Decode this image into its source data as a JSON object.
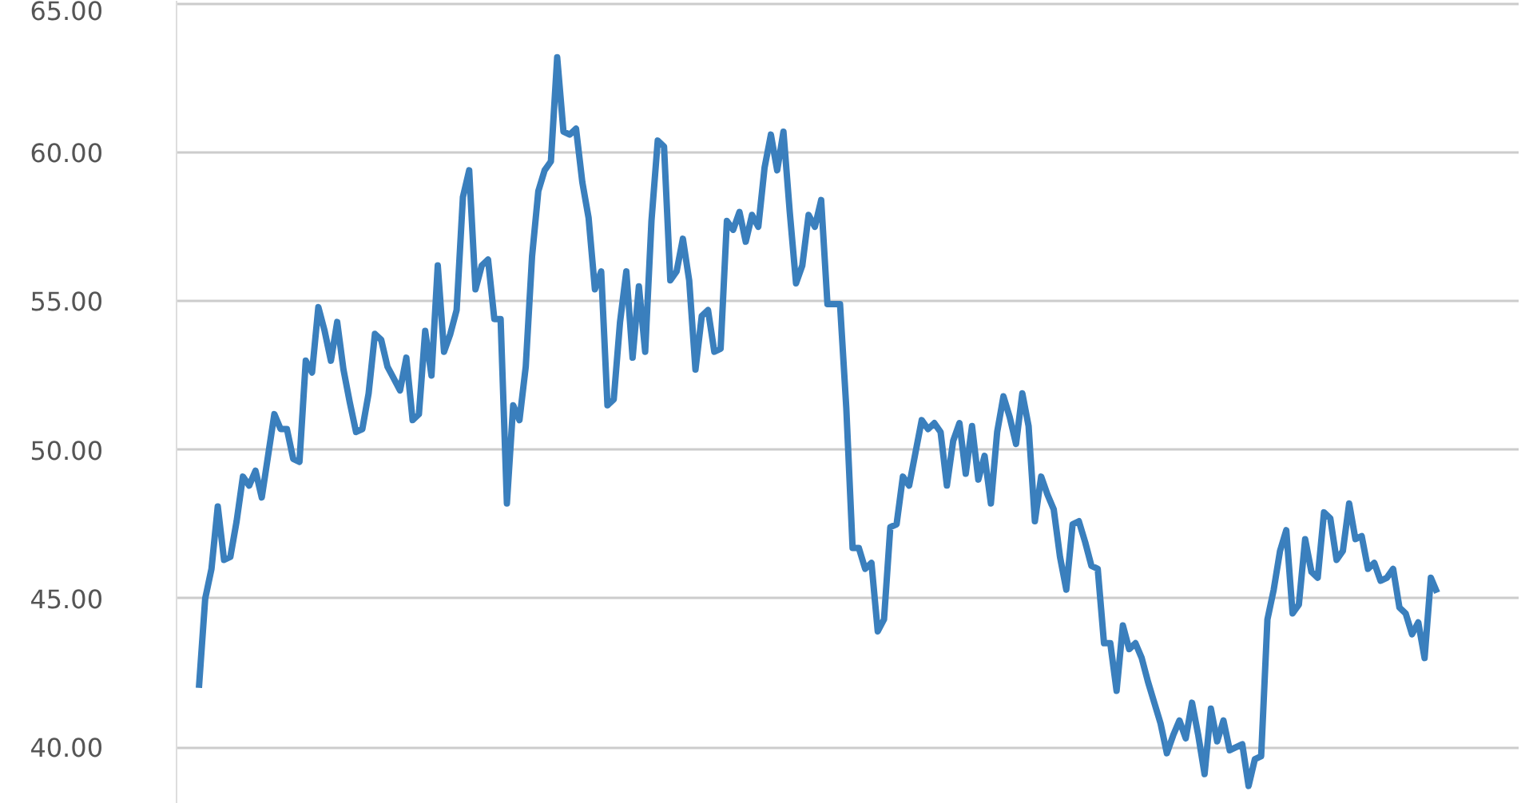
{
  "chart_data": {
    "type": "line",
    "color": "#3a7fbd",
    "grid": "y",
    "tick_labels": "y",
    "ylim": [
      38.1,
      65.1
    ],
    "yticks": [
      {
        "value": 40,
        "label": "40.00"
      },
      {
        "value": 45,
        "label": "45.00"
      },
      {
        "value": 50,
        "label": "50.00"
      },
      {
        "value": 55,
        "label": "55.00"
      },
      {
        "value": 60,
        "label": "60.00"
      },
      {
        "value": 65,
        "label": "65.00"
      }
    ],
    "categories": [
      null,
      null,
      null,
      null,
      null,
      null,
      null,
      null,
      null,
      null,
      null,
      null,
      null,
      null,
      null,
      null,
      null,
      null,
      null,
      null,
      null,
      null,
      null,
      null,
      null,
      null,
      null,
      null,
      null,
      null,
      null,
      null,
      null,
      null,
      null,
      null,
      null,
      null,
      null,
      null,
      null,
      null,
      null,
      null,
      null,
      null,
      null,
      null,
      null,
      null,
      null,
      null,
      null,
      null,
      null,
      null,
      null,
      null,
      null,
      null,
      null,
      null,
      null,
      null,
      null,
      null,
      null,
      null,
      null,
      null,
      null,
      null,
      null,
      null,
      null,
      null,
      null,
      null,
      null,
      null,
      null,
      null,
      null,
      null,
      null,
      null,
      null,
      null,
      null,
      null,
      null,
      null,
      null,
      null,
      null,
      null,
      null,
      null,
      null,
      null,
      null,
      null,
      null,
      null,
      null,
      null,
      null,
      null,
      null,
      null,
      null,
      null,
      null,
      null,
      null,
      null,
      null,
      null,
      null,
      null,
      null,
      null,
      null,
      null,
      null,
      null,
      null,
      null,
      null,
      null,
      null,
      null,
      null,
      null,
      null,
      null,
      null,
      null,
      null,
      null,
      null,
      null,
      null,
      null,
      null,
      null,
      null,
      null,
      null,
      null,
      null,
      null,
      null,
      null,
      null,
      null,
      null,
      null,
      null,
      null,
      null,
      null,
      null,
      null,
      null,
      null,
      null,
      null,
      null,
      null,
      null,
      null,
      null,
      null,
      null,
      null,
      null,
      null,
      null,
      null,
      null,
      null,
      null,
      null,
      null,
      null,
      null,
      null,
      null,
      null,
      null,
      null,
      null,
      null,
      null,
      null,
      null,
      null
    ],
    "values": [
      42.0,
      45.0,
      46.0,
      48.1,
      46.3,
      46.4,
      47.6,
      49.1,
      48.8,
      49.3,
      48.4,
      49.8,
      51.2,
      50.7,
      50.7,
      49.7,
      49.6,
      53.0,
      52.6,
      54.8,
      54.0,
      53.0,
      54.3,
      52.7,
      51.6,
      50.6,
      50.7,
      51.9,
      53.9,
      53.7,
      52.8,
      52.4,
      52.0,
      53.1,
      51.0,
      51.2,
      54.0,
      52.5,
      56.2,
      53.3,
      53.9,
      54.7,
      58.5,
      59.4,
      55.4,
      56.2,
      56.4,
      54.4,
      54.4,
      48.2,
      51.5,
      51.0,
      52.8,
      56.5,
      58.7,
      59.4,
      59.7,
      63.2,
      60.7,
      60.6,
      60.8,
      59.0,
      57.8,
      55.4,
      56.0,
      51.5,
      51.7,
      54.3,
      56.0,
      53.1,
      55.5,
      53.3,
      57.7,
      60.4,
      60.2,
      55.7,
      56.0,
      57.1,
      55.7,
      52.7,
      54.5,
      54.7,
      53.3,
      53.4,
      57.7,
      57.4,
      58.0,
      57.0,
      57.9,
      57.5,
      59.5,
      60.6,
      59.4,
      60.7,
      58.0,
      55.6,
      56.2,
      57.9,
      57.5,
      58.4,
      54.9,
      54.9,
      54.9,
      51.4,
      46.7,
      46.7,
      46.0,
      46.2,
      43.9,
      44.3,
      47.4,
      47.5,
      49.1,
      48.8,
      49.9,
      51.0,
      50.7,
      50.9,
      50.6,
      48.8,
      50.3,
      50.9,
      49.2,
      50.8,
      49.0,
      49.8,
      48.2,
      50.6,
      51.8,
      51.1,
      50.2,
      51.9,
      50.8,
      47.6,
      49.1,
      48.5,
      48.0,
      46.4,
      45.3,
      47.5,
      47.6,
      46.9,
      46.1,
      46.0,
      43.5,
      43.5,
      41.9,
      44.1,
      43.3,
      43.5,
      43.0,
      42.2,
      41.5,
      40.8,
      39.8,
      40.4,
      40.9,
      40.3,
      41.5,
      40.4,
      39.1,
      41.3,
      40.2,
      40.9,
      39.9,
      40.0,
      40.1,
      38.7,
      39.6,
      39.7,
      44.3,
      45.3,
      46.6,
      47.3,
      44.5,
      44.8,
      47.0,
      45.9,
      45.7,
      47.9,
      47.7,
      46.3,
      46.6,
      48.2,
      47.0,
      47.1,
      46.0,
      46.2,
      45.6,
      45.7,
      46.0,
      44.7,
      44.5,
      43.8,
      44.2,
      43.0,
      45.7,
      45.2
    ]
  }
}
